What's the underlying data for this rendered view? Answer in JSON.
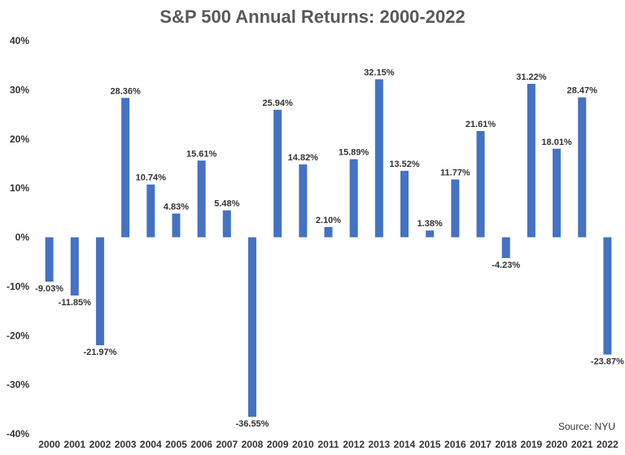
{
  "chart_data": {
    "type": "bar",
    "title": "S&P 500 Annual Returns: 2000-2022",
    "xlabel": "",
    "ylabel": "",
    "ylim": [
      -40,
      40
    ],
    "yticks": [
      "40%",
      "30%",
      "20%",
      "10%",
      "0%",
      "-10%",
      "-20%",
      "-30%",
      "-40%"
    ],
    "grid": false,
    "categories": [
      "2000",
      "2001",
      "2002",
      "2003",
      "2004",
      "2005",
      "2006",
      "2007",
      "2008",
      "2009",
      "2010",
      "2011",
      "2012",
      "2013",
      "2014",
      "2015",
      "2016",
      "2017",
      "2018",
      "2019",
      "2020",
      "2021",
      "2022"
    ],
    "values": [
      -9.03,
      -11.85,
      -21.97,
      28.36,
      10.74,
      4.83,
      15.61,
      5.48,
      -36.55,
      25.94,
      14.82,
      2.1,
      15.89,
      32.15,
      13.52,
      1.38,
      11.77,
      21.61,
      -4.23,
      31.22,
      18.01,
      28.47,
      -23.87
    ],
    "data_labels": [
      "-9.03%",
      "-11.85%",
      "-21.97%",
      "28.36%",
      "10.74%",
      "4.83%",
      "15.61%",
      "5.48%",
      "-36.55%",
      "25.94%",
      "14.82%",
      "2.10%",
      "15.89%",
      "32.15%",
      "13.52%",
      "1.38%",
      "11.77%",
      "21.61%",
      "-4.23%",
      "31.22%",
      "18.01%",
      "28.47%",
      "-23.87%"
    ],
    "bar_color": "#4472C4",
    "source": "Source: NYU"
  }
}
